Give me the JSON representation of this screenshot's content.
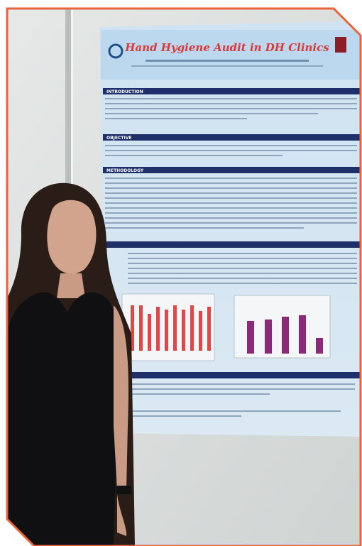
{
  "poster": {
    "title": "Hand Hygiene Audit in DH Clinics",
    "sections": [
      "INTRODUCTION",
      "OBJECTIVE",
      "METHODOLOGY"
    ]
  }
}
